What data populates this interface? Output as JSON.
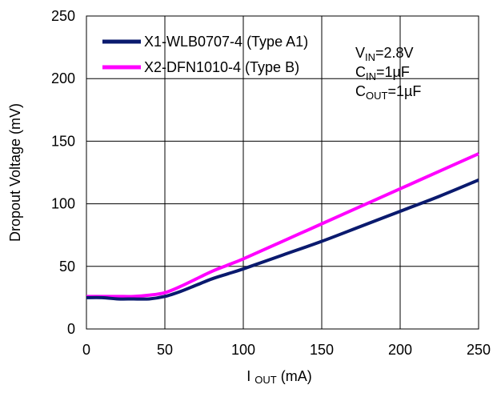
{
  "chart_data": {
    "type": "line",
    "title": "",
    "xlabel": {
      "main": "I",
      "sub": "OUT",
      "unit": " (mA)"
    },
    "ylabel": "Dropout Voltage (mV)",
    "xlim": [
      0,
      250
    ],
    "ylim": [
      0,
      250
    ],
    "xticks": [
      0,
      50,
      100,
      150,
      200,
      250
    ],
    "yticks": [
      0,
      50,
      100,
      150,
      200,
      250
    ],
    "grid": true,
    "legend_position": "top-left",
    "series": [
      {
        "name": "X1-WLB0707-4 (Type A1)",
        "color": "#0a1a6e",
        "x": [
          0,
          10,
          20,
          30,
          40,
          50,
          60,
          70,
          80,
          90,
          100,
          125,
          150,
          175,
          200,
          225,
          250
        ],
        "y": [
          25,
          25,
          24,
          24,
          24,
          26,
          30,
          35,
          40,
          44,
          48,
          59,
          70,
          82,
          94,
          106,
          119
        ]
      },
      {
        "name": "X2-DFN1010-4 (Type B)",
        "color": "#ff00ff",
        "x": [
          0,
          10,
          20,
          30,
          40,
          50,
          60,
          70,
          80,
          90,
          100,
          125,
          150,
          175,
          200,
          225,
          250
        ],
        "y": [
          26,
          26,
          26,
          26,
          27,
          29,
          34,
          40,
          46,
          51,
          56,
          70,
          84,
          98,
          112,
          126,
          140
        ]
      }
    ],
    "annotation": [
      {
        "main": "V",
        "sub": "IN",
        "rest": "=2.8V"
      },
      {
        "main": "C",
        "sub": "IN",
        "rest": "=1µF"
      },
      {
        "main": "C",
        "sub": "OUT",
        "rest": "=1µF"
      }
    ]
  }
}
